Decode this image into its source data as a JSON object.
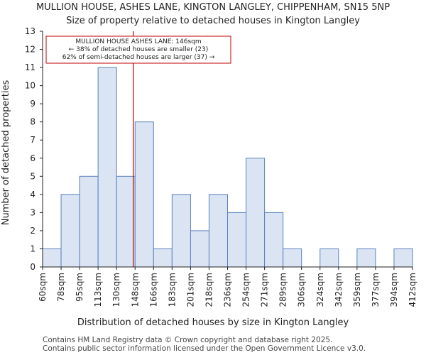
{
  "chart_data": {
    "type": "bar",
    "title": "MULLION HOUSE, ASHES LANE, KINGTON LANGLEY, CHIPPENHAM, SN15 5NP",
    "subtitle": "Size of property relative to detached houses in Kington Langley",
    "xlabel": "Distribution of detached houses by size in Kington Langley",
    "ylabel": "Number of detached properties",
    "x_tick_labels": [
      "60sqm",
      "78sqm",
      "95sqm",
      "113sqm",
      "130sqm",
      "148sqm",
      "166sqm",
      "183sqm",
      "201sqm",
      "218sqm",
      "236sqm",
      "254sqm",
      "271sqm",
      "289sqm",
      "306sqm",
      "324sqm",
      "342sqm",
      "359sqm",
      "377sqm",
      "394sqm",
      "412sqm"
    ],
    "values": [
      1,
      4,
      5,
      11,
      5,
      8,
      1,
      4,
      2,
      4,
      3,
      6,
      3,
      1,
      0,
      1,
      0,
      1,
      0,
      1
    ],
    "ylim": [
      0,
      13
    ],
    "y_ticks": [
      0,
      1,
      2,
      3,
      4,
      5,
      6,
      7,
      8,
      9,
      10,
      11,
      12,
      13
    ],
    "marker_bin_position": 4.9,
    "colors": {
      "bar_fill": "#dae4f3",
      "bar_edge": "#5a82bd",
      "marker": "#c00000",
      "annotation_border": "#c00000"
    },
    "annotation": {
      "line1": "MULLION HOUSE ASHES LANE: 146sqm",
      "line2": "← 38% of detached houses are smaller (23)",
      "line3": "62% of semi-detached houses are larger (37) →"
    }
  },
  "footer": {
    "line1": "Contains HM Land Registry data © Crown copyright and database right 2025.",
    "line2": "Contains public sector information licensed under the Open Government Licence v3.0."
  }
}
